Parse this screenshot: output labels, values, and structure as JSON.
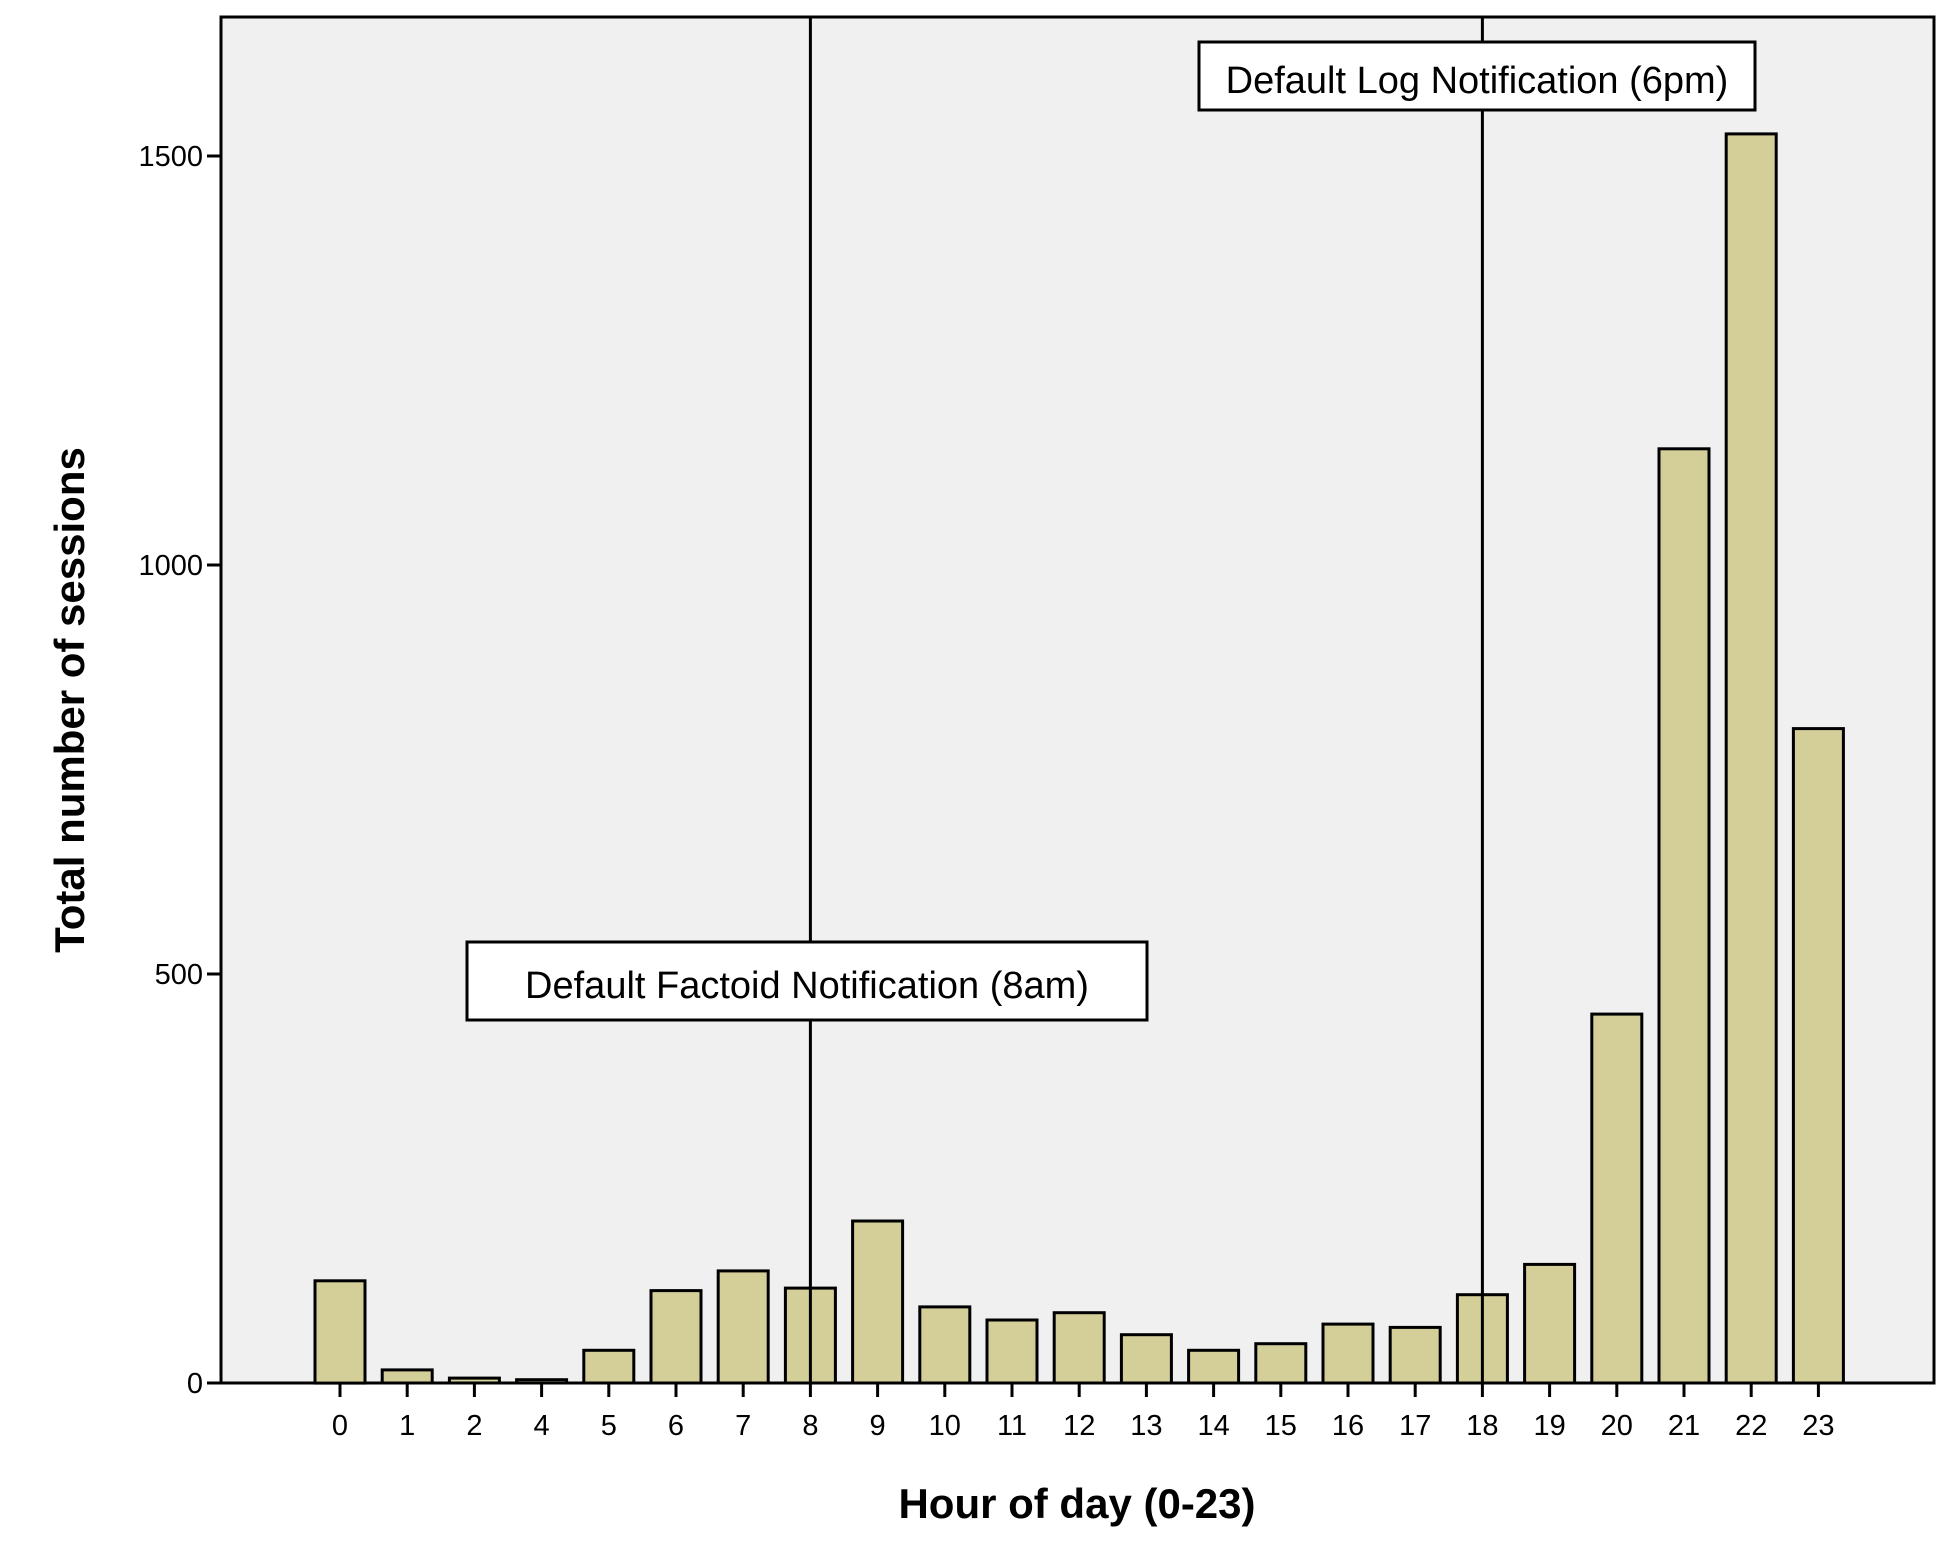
{
  "chart_data": {
    "type": "bar",
    "title": "",
    "xlabel": "Hour of day (0-23)",
    "ylabel": "Total number of sessions",
    "categories": [
      "0",
      "1",
      "2",
      "4",
      "5",
      "6",
      "7",
      "8",
      "9",
      "10",
      "11",
      "12",
      "13",
      "14",
      "15",
      "16",
      "17",
      "18",
      "19",
      "20",
      "21",
      "22",
      "23"
    ],
    "values": [
      125,
      16,
      6,
      4,
      40,
      113,
      137,
      116,
      198,
      93,
      77,
      86,
      59,
      40,
      48,
      72,
      68,
      108,
      145,
      451,
      1142,
      1527,
      800
    ],
    "ylim": [
      0,
      1650
    ],
    "yticks": [
      0,
      500,
      1000,
      1500
    ],
    "grid": false,
    "legend": "none",
    "annotations": [
      {
        "text": "Default Factoid Notification (8am)",
        "at_category": "8"
      },
      {
        "text": "Default Log Notification (6pm)",
        "at_category": "18"
      }
    ],
    "colors": {
      "bar_fill": "#d4cf98",
      "bar_stroke": "#000000",
      "plot_background": "#f0f0f0"
    }
  }
}
